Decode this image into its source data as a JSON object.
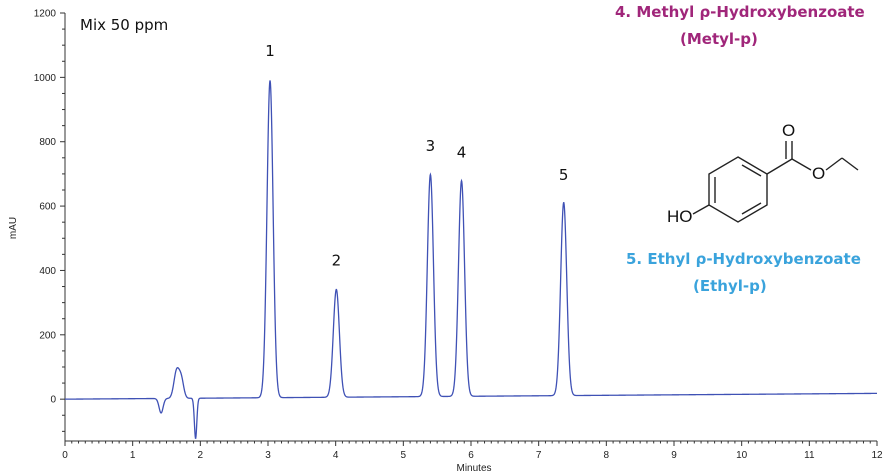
{
  "chart_data": {
    "type": "line",
    "title": "",
    "sample_label": "Mix 50 ppm",
    "xlabel": "Minutes",
    "ylabel": "mAU",
    "xlim": [
      0,
      12
    ],
    "ylim": [
      -130,
      1200
    ],
    "x_ticks": [
      0,
      1,
      2,
      3,
      4,
      5,
      6,
      7,
      8,
      9,
      10,
      11,
      12
    ],
    "y_ticks": [
      0,
      200,
      400,
      600,
      800,
      1000,
      1200
    ],
    "grid": false,
    "line_color": "#3f51b5",
    "baseline_start": 0,
    "baseline_end": 18,
    "disturbance": [
      {
        "x": 1.42,
        "y": -45
      },
      {
        "x": 1.65,
        "y": 85
      },
      {
        "x": 1.72,
        "y": 55
      },
      {
        "x": 1.93,
        "y": -125
      }
    ],
    "peaks": [
      {
        "label": "1",
        "time": 3.03,
        "height": 985
      },
      {
        "label": "2",
        "time": 4.01,
        "height": 335
      },
      {
        "label": "3",
        "time": 5.4,
        "height": 690
      },
      {
        "label": "4",
        "time": 5.86,
        "height": 670
      },
      {
        "label": "5",
        "time": 7.37,
        "height": 600
      }
    ]
  },
  "compounds": [
    {
      "name": "4. Methyl ρ-Hydroxybenzoate",
      "short": "(Metyl-p)",
      "color": "#a0267a"
    },
    {
      "name": "5. Ethyl ρ-Hydroxybenzoate",
      "short": "(Ethyl-p)",
      "color": "#3aa3dc"
    }
  ],
  "structure": {
    "atom_o": "O",
    "atom_ho": "HO"
  }
}
